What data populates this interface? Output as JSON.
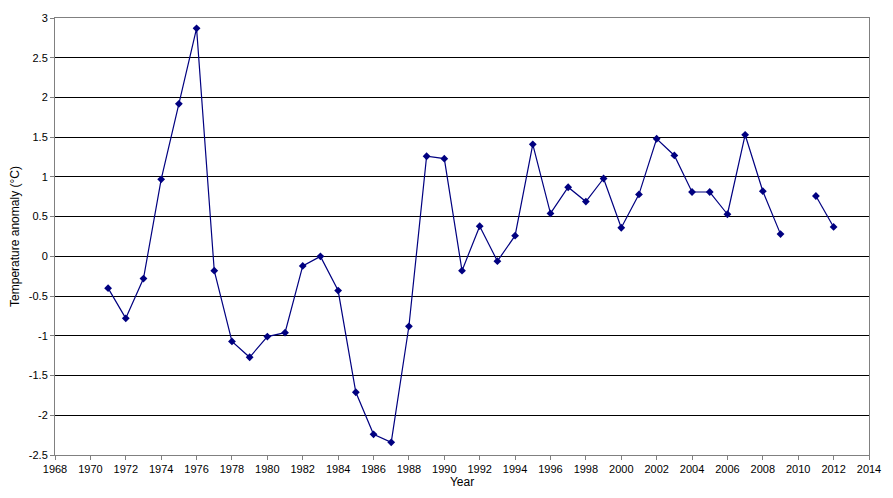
{
  "chart_data": {
    "type": "line",
    "x_label": "Year",
    "y_label": "Temperature anomaly (°C)",
    "x": [
      1971,
      1972,
      1973,
      1974,
      1975,
      1976,
      1977,
      1978,
      1979,
      1980,
      1981,
      1982,
      1983,
      1984,
      1985,
      1986,
      1987,
      1988,
      1989,
      1990,
      1991,
      1992,
      1993,
      1994,
      1995,
      1996,
      1997,
      1998,
      1999,
      2000,
      2001,
      2002,
      2003,
      2004,
      2005,
      2006,
      2007,
      2008,
      2009,
      2010,
      2011,
      2012
    ],
    "values": [
      -0.4,
      -0.78,
      -0.28,
      0.97,
      1.92,
      2.87,
      -0.18,
      -1.07,
      -1.27,
      -1.01,
      -0.96,
      -0.12,
      0.0,
      -0.43,
      -1.71,
      -2.24,
      -2.34,
      -0.88,
      1.26,
      1.23,
      -0.18,
      0.38,
      -0.06,
      0.26,
      1.41,
      0.54,
      0.87,
      0.69,
      0.98,
      0.36,
      0.78,
      1.48,
      1.27,
      0.81,
      0.81,
      0.53,
      1.53,
      0.82,
      0.28,
      null,
      0.76,
      0.37
    ],
    "color": "#000080",
    "marker": "diamond",
    "line_style": "solid",
    "xlim": [
      1968,
      2014
    ],
    "xticks": [
      1968,
      1970,
      1972,
      1974,
      1976,
      1978,
      1980,
      1982,
      1984,
      1986,
      1988,
      1990,
      1992,
      1994,
      1996,
      1998,
      2000,
      2002,
      2004,
      2006,
      2008,
      2010,
      2012,
      2014
    ],
    "ylim": [
      -2.5,
      3
    ],
    "yticks": [
      -2.5,
      -2,
      -1.5,
      -1,
      -0.5,
      0,
      0.5,
      1,
      1.5,
      2,
      2.5,
      3
    ],
    "grid": true
  }
}
